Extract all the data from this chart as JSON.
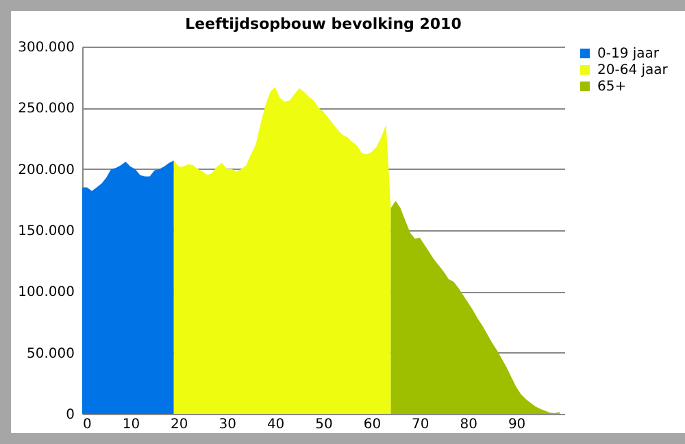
{
  "chart_data": {
    "type": "area",
    "title": "Leeftijdsopbouw bevolking 2010",
    "xlim": [
      0,
      100
    ],
    "xticks": [
      0,
      10,
      20,
      30,
      40,
      50,
      60,
      70,
      80,
      90
    ],
    "ylim": [
      0,
      300000
    ],
    "yticks": [
      {
        "value": 0,
        "label": "0"
      },
      {
        "value": 50000,
        "label": "50.000"
      },
      {
        "value": 100000,
        "label": "100.000"
      },
      {
        "value": 150000,
        "label": "150.000"
      },
      {
        "value": 200000,
        "label": "200.000"
      },
      {
        "value": 250000,
        "label": "250.000"
      },
      {
        "value": 300000,
        "label": "300.000"
      }
    ],
    "grid": "y",
    "legend": "right",
    "series": [
      {
        "name": "0-19 jaar",
        "color": "#0073e6",
        "x": [
          0,
          1,
          2,
          3,
          4,
          5,
          6,
          7,
          8,
          9,
          10,
          11,
          12,
          13,
          14,
          15,
          16,
          17,
          18,
          19
        ],
        "values": [
          185000,
          185000,
          182000,
          185000,
          188000,
          193000,
          200000,
          201000,
          203000,
          206000,
          202000,
          200000,
          195000,
          194000,
          194000,
          199000,
          200000,
          202000,
          205000,
          207000
        ]
      },
      {
        "name": "20-64 jaar",
        "color": "#eefc10",
        "x": [
          19,
          20,
          21,
          22,
          23,
          24,
          25,
          26,
          27,
          28,
          29,
          30,
          31,
          32,
          33,
          34,
          35,
          36,
          37,
          38,
          39,
          40,
          41,
          42,
          43,
          44,
          45,
          46,
          47,
          48,
          49,
          50,
          51,
          52,
          53,
          54,
          55,
          56,
          57,
          58,
          59,
          60,
          61,
          62,
          63,
          64
        ],
        "values": [
          207000,
          202000,
          202000,
          204000,
          203000,
          200000,
          198000,
          195000,
          197000,
          202000,
          205000,
          200000,
          200000,
          198000,
          200000,
          203000,
          212000,
          220000,
          237000,
          252000,
          263000,
          267000,
          258000,
          255000,
          256000,
          261000,
          266000,
          263000,
          259000,
          256000,
          250000,
          247000,
          242000,
          237000,
          232000,
          228000,
          226000,
          222000,
          219000,
          213000,
          212000,
          214000,
          218000,
          226000,
          236000,
          168000
        ]
      },
      {
        "name": "65+",
        "color": "#9ebf00",
        "x": [
          64,
          65,
          66,
          67,
          68,
          69,
          70,
          71,
          72,
          73,
          74,
          75,
          76,
          77,
          78,
          79,
          80,
          81,
          82,
          83,
          84,
          85,
          86,
          87,
          88,
          89,
          90,
          91,
          92,
          93,
          94,
          95,
          96,
          97,
          98,
          99
        ],
        "values": [
          168000,
          174000,
          168000,
          158000,
          148000,
          143000,
          144000,
          138000,
          132000,
          126000,
          121000,
          116000,
          110000,
          108000,
          103000,
          97000,
          91000,
          85000,
          78000,
          72000,
          65000,
          58000,
          52000,
          45000,
          38000,
          30000,
          22000,
          16000,
          12000,
          9000,
          6000,
          4000,
          2500,
          1000,
          500,
          1500
        ]
      }
    ]
  }
}
